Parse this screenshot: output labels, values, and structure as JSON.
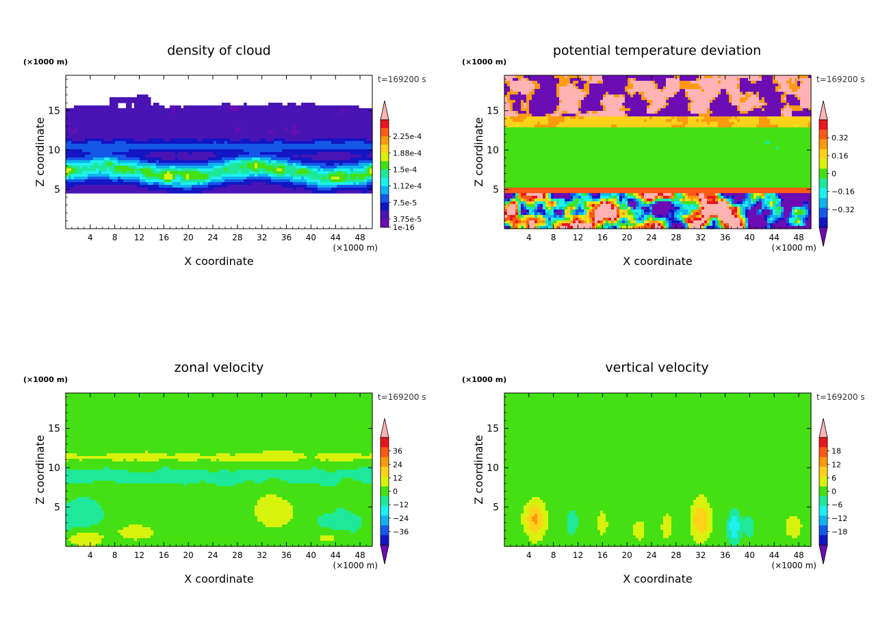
{
  "chart_data": [
    {
      "type": "heatmap",
      "title": "density of cloud",
      "xlabel": "X coordinate",
      "ylabel": "Z coordinate",
      "x_unit": "(×1000 m)",
      "y_unit": "(×1000 m)",
      "time_label": "t=169200 s",
      "xlim": [
        0,
        50
      ],
      "ylim": [
        0,
        19.5
      ],
      "x_ticks": [
        4,
        8,
        12,
        16,
        20,
        24,
        28,
        32,
        36,
        40,
        44,
        48
      ],
      "y_ticks": [
        5,
        10,
        15
      ],
      "colorbar": {
        "labels": [
          "2.25e-4",
          "1.88e-4",
          "1.5e-4",
          "1.12e-4",
          "7.5e-5",
          "3.75e-5",
          "1e-16"
        ],
        "colors": [
          "#ffb3b3",
          "#e8161e",
          "#ff5a14",
          "#ff9a0e",
          "#ffd21a",
          "#d8f20e",
          "#44e014",
          "#1ee89a",
          "#1ef0f0",
          "#10b4ec",
          "#1458e8",
          "#1216c4",
          "#4a14b4",
          "#6c0cb4"
        ],
        "top_arrow": true,
        "bottom_arrow": false
      },
      "field": "cloud"
    },
    {
      "type": "heatmap",
      "title": "potential temperature deviation",
      "xlabel": "X coordinate",
      "ylabel": "Z coordinate",
      "x_unit": "(×1000 m)",
      "y_unit": "(×1000 m)",
      "time_label": "t=169200 s",
      "xlim": [
        0,
        50
      ],
      "ylim": [
        0,
        19.5
      ],
      "x_ticks": [
        4,
        8,
        12,
        16,
        20,
        24,
        28,
        32,
        36,
        40,
        44,
        48
      ],
      "y_ticks": [
        5,
        10,
        15
      ],
      "colorbar": {
        "labels": [
          "0.32",
          "0.16",
          "0",
          "−0.16",
          "−0.32"
        ],
        "colors": [
          "#ffb3b3",
          "#e8161e",
          "#ff5a14",
          "#ff9a0e",
          "#ffd21a",
          "#d8f20e",
          "#44e014",
          "#1ee89a",
          "#1ef0f0",
          "#10b4ec",
          "#1458e8",
          "#1216c4",
          "#6c0cb4"
        ],
        "top_arrow": true,
        "bottom_arrow": true
      },
      "field": "theta"
    },
    {
      "type": "heatmap",
      "title": "zonal velocity",
      "xlabel": "X coordinate",
      "ylabel": "Z coordinate",
      "x_unit": "(×1000 m)",
      "y_unit": "(×1000 m)",
      "time_label": "t=169200 s",
      "xlim": [
        0,
        50
      ],
      "ylim": [
        0,
        19.5
      ],
      "x_ticks": [
        4,
        8,
        12,
        16,
        20,
        24,
        28,
        32,
        36,
        40,
        44,
        48
      ],
      "y_ticks": [
        5,
        10,
        15
      ],
      "colorbar": {
        "labels": [
          "36",
          "24",
          "12",
          "0",
          "−12",
          "−24",
          "−36"
        ],
        "colors": [
          "#ffb3b3",
          "#e8161e",
          "#ff5a14",
          "#ff9a0e",
          "#ffd21a",
          "#d8f20e",
          "#44e014",
          "#1ee89a",
          "#1ef0f0",
          "#10b4ec",
          "#1458e8",
          "#1216c4",
          "#6c0cb4"
        ],
        "top_arrow": true,
        "bottom_arrow": true
      },
      "field": "u"
    },
    {
      "type": "heatmap",
      "title": "vertical velocity",
      "xlabel": "X coordinate",
      "ylabel": "Z coordinate",
      "x_unit": "(×1000 m)",
      "y_unit": "(×1000 m)",
      "time_label": "t=169200 s",
      "xlim": [
        0,
        50
      ],
      "ylim": [
        0,
        19.5
      ],
      "x_ticks": [
        4,
        8,
        12,
        16,
        20,
        24,
        28,
        32,
        36,
        40,
        44,
        48
      ],
      "y_ticks": [
        5,
        10,
        15
      ],
      "colorbar": {
        "labels": [
          "18",
          "12",
          "6",
          "0",
          "−6",
          "−12",
          "−18"
        ],
        "colors": [
          "#ffb3b3",
          "#e8161e",
          "#ff5a14",
          "#ff9a0e",
          "#ffd21a",
          "#d8f20e",
          "#44e014",
          "#1ee89a",
          "#1ef0f0",
          "#10b4ec",
          "#1458e8",
          "#1216c4",
          "#6c0cb4"
        ],
        "top_arrow": true,
        "bottom_arrow": true
      },
      "field": "w"
    }
  ]
}
